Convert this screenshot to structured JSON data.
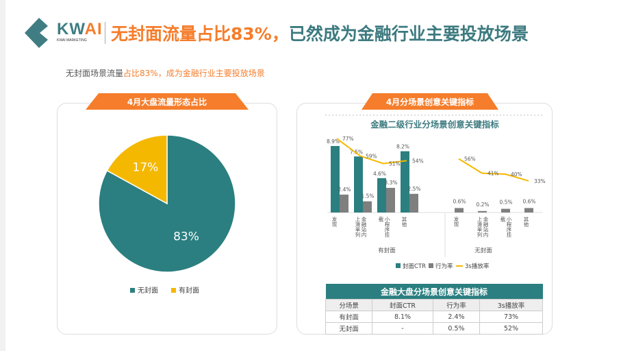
{
  "brand": {
    "name_a": "KW",
    "name_b": "AI",
    "sub": "KWAI MARKETING"
  },
  "title": {
    "orange": "无封面流量占比83%，",
    "teal": "已然成为金融行业主要投放场景"
  },
  "subtitle": {
    "gray": "无封面场景流量",
    "orange": "占比83%，成为金融行业主要投放场景"
  },
  "left_panel": {
    "ribbon": "4月大盘流量形态占比"
  },
  "right_panel": {
    "ribbon": "4月分场景创意关键指标"
  },
  "colors": {
    "teal": "#2b7f80",
    "yellow": "#f5b800",
    "gray": "#7f7f7f",
    "orange": "#f57d2b"
  },
  "chart_data": [
    {
      "type": "pie",
      "slices": [
        {
          "name": "无封面",
          "value": 83,
          "label": "83%",
          "color": "#2b7f80"
        },
        {
          "name": "有封面",
          "value": 17,
          "label": "17%",
          "color": "#f5b800"
        }
      ],
      "legend": "bottom"
    },
    {
      "type": "bar",
      "title": "金融二级行业分场景创意关键指标",
      "groups": [
        {
          "name": "有封面",
          "categories": [
            "发现",
            "金融站内上滑单列",
            "小程序挂载",
            "其他"
          ]
        },
        {
          "name": "无封面",
          "categories": [
            "发现",
            "金融站内上滑单列",
            "小程序挂载",
            "其他"
          ]
        }
      ],
      "series": [
        {
          "name": "封面CTR",
          "type": "bar",
          "values": [
            [
              8.9,
              7.5,
              4.6,
              8.2
            ],
            []
          ],
          "labels": [
            [
              "8.9%",
              "7.5%",
              "4.6%",
              "8.2%"
            ],
            []
          ]
        },
        {
          "name": "行为率",
          "type": "bar",
          "values": [
            [
              2.4,
              1.5,
              3.3,
              2.5
            ],
            [
              0.6,
              0.2,
              0.5,
              0.6
            ]
          ],
          "labels": [
            [
              "2.4%",
              "1.5%",
              "3.3%",
              "2.5%"
            ],
            [
              "0.6%",
              "0.2%",
              "0.5%",
              "0.6%"
            ]
          ]
        },
        {
          "name": "3s播放率",
          "type": "line",
          "values": [
            [
              77,
              59,
              51,
              54
            ],
            [
              56,
              41,
              40,
              33
            ]
          ],
          "labels": [
            [
              "77%",
              "59%",
              "51%",
              "54%"
            ],
            [
              "56%",
              "41%",
              "40%",
              "33%"
            ]
          ]
        }
      ],
      "legend": "bottom"
    }
  ],
  "table": {
    "title": "金融大盘分场景创意关键指标",
    "headers": [
      "分场景",
      "封面CTR",
      "行为率",
      "3s播放率"
    ],
    "rows": [
      [
        "有封面",
        "8.1%",
        "2.4%",
        "73%"
      ],
      [
        "无封面",
        "-",
        "0.5%",
        "52%"
      ]
    ]
  }
}
